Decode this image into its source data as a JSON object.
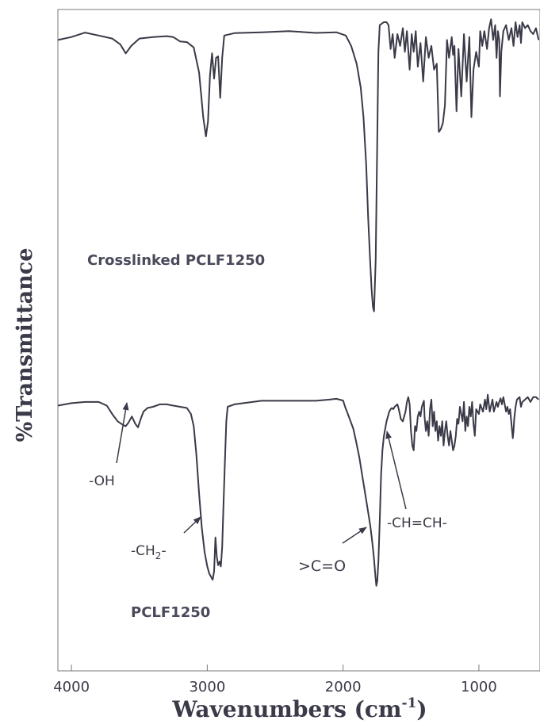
{
  "chart_data": {
    "type": "line",
    "xlabel": "Wavenumbers (cm",
    "xlabel_sup": "-1",
    "ylabel": "%Transmittance",
    "xlim": [
      4100,
      550
    ],
    "x_reversed": true,
    "x_ticks": [
      {
        "value": 4000,
        "label": "4000"
      },
      {
        "value": 3000,
        "label": "3000"
      },
      {
        "value": 2000,
        "label": "2000"
      },
      {
        "value": 1000,
        "label": "1000"
      }
    ],
    "ylim": [
      0,
      100
    ],
    "y_ticks_shown": false,
    "grid": false,
    "line_color": "#3a3a48",
    "series": [
      {
        "name": "Crosslinked PCLF1250",
        "points": [
          [
            4100,
            94.0
          ],
          [
            4000,
            95.0
          ],
          [
            3900,
            96.5
          ],
          [
            3800,
            95.5
          ],
          [
            3700,
            94.5
          ],
          [
            3640,
            92.5
          ],
          [
            3600,
            89.5
          ],
          [
            3560,
            92.0
          ],
          [
            3500,
            94.5
          ],
          [
            3400,
            95.0
          ],
          [
            3300,
            95.3
          ],
          [
            3250,
            95.0
          ],
          [
            3200,
            93.5
          ],
          [
            3150,
            93.3
          ],
          [
            3100,
            91.5
          ],
          [
            3060,
            83.0
          ],
          [
            3030,
            68.0
          ],
          [
            3010,
            61.5
          ],
          [
            2995,
            66.5
          ],
          [
            2980,
            82.0
          ],
          [
            2965,
            89.5
          ],
          [
            2950,
            81.0
          ],
          [
            2935,
            88.0
          ],
          [
            2920,
            88.5
          ],
          [
            2905,
            74.5
          ],
          [
            2890,
            88.0
          ],
          [
            2875,
            95.5
          ],
          [
            2800,
            96.3
          ],
          [
            2600,
            96.6
          ],
          [
            2400,
            97.0
          ],
          [
            2200,
            96.4
          ],
          [
            2050,
            96.6
          ],
          [
            1980,
            95.5
          ],
          [
            1940,
            92.0
          ],
          [
            1900,
            86.0
          ],
          [
            1870,
            78.0
          ],
          [
            1850,
            68.0
          ],
          [
            1830,
            52.0
          ],
          [
            1815,
            34.0
          ],
          [
            1800,
            19.0
          ],
          [
            1790,
            10.0
          ],
          [
            1780,
            4.0
          ],
          [
            1772,
            2.5
          ],
          [
            1760,
            20.0
          ],
          [
            1750,
            55.0
          ],
          [
            1740,
            90.0
          ],
          [
            1730,
            99.0
          ],
          [
            1700,
            100.0
          ],
          [
            1680,
            100.0
          ],
          [
            1665,
            99.0
          ],
          [
            1650,
            91.0
          ],
          [
            1635,
            96.0
          ],
          [
            1620,
            88.0
          ],
          [
            1600,
            96.0
          ],
          [
            1580,
            92.0
          ],
          [
            1560,
            98.0
          ],
          [
            1545,
            90.0
          ],
          [
            1530,
            97.0
          ],
          [
            1510,
            84.0
          ],
          [
            1495,
            96.0
          ],
          [
            1480,
            90.0
          ],
          [
            1465,
            97.0
          ],
          [
            1450,
            85.0
          ],
          [
            1430,
            93.0
          ],
          [
            1410,
            80.0
          ],
          [
            1390,
            95.0
          ],
          [
            1370,
            88.0
          ],
          [
            1350,
            92.0
          ],
          [
            1330,
            84.0
          ],
          [
            1310,
            86.0
          ],
          [
            1295,
            63.0
          ],
          [
            1280,
            64.0
          ],
          [
            1265,
            66.0
          ],
          [
            1250,
            72.0
          ],
          [
            1235,
            94.0
          ],
          [
            1220,
            88.0
          ],
          [
            1200,
            95.0
          ],
          [
            1190,
            89.0
          ],
          [
            1180,
            92.0
          ],
          [
            1165,
            70.0
          ],
          [
            1150,
            91.0
          ],
          [
            1130,
            75.0
          ],
          [
            1110,
            96.0
          ],
          [
            1090,
            80.0
          ],
          [
            1070,
            95.0
          ],
          [
            1055,
            68.0
          ],
          [
            1040,
            84.0
          ],
          [
            1020,
            90.0
          ],
          [
            1000,
            85.0
          ],
          [
            990,
            97.0
          ],
          [
            975,
            92.0
          ],
          [
            960,
            97.0
          ],
          [
            940,
            91.0
          ],
          [
            925,
            98.0
          ],
          [
            910,
            101.0
          ],
          [
            895,
            94.0
          ],
          [
            880,
            99.0
          ],
          [
            870,
            88.0
          ],
          [
            860,
            97.0
          ],
          [
            850,
            94.0
          ],
          [
            845,
            75.0
          ],
          [
            835,
            90.0
          ],
          [
            820,
            97.0
          ],
          [
            800,
            99.0
          ],
          [
            780,
            94.0
          ],
          [
            760,
            98.0
          ],
          [
            745,
            92.0
          ],
          [
            730,
            100.0
          ],
          [
            715,
            95.0
          ],
          [
            700,
            99.0
          ],
          [
            690,
            93.0
          ],
          [
            680,
            100.0
          ],
          [
            660,
            98.0
          ],
          [
            640,
            99.0
          ],
          [
            620,
            97.0
          ],
          [
            600,
            96.0
          ],
          [
            580,
            98.0
          ],
          [
            560,
            94.0
          ]
        ]
      },
      {
        "name": "PCLF1250",
        "points": [
          [
            4100,
            80.5
          ],
          [
            4000,
            81.5
          ],
          [
            3900,
            82.0
          ],
          [
            3800,
            82.0
          ],
          [
            3740,
            80.5
          ],
          [
            3700,
            77.0
          ],
          [
            3660,
            74.0
          ],
          [
            3620,
            72.5
          ],
          [
            3600,
            72.0
          ],
          [
            3580,
            73.5
          ],
          [
            3555,
            76.0
          ],
          [
            3530,
            73.0
          ],
          [
            3510,
            71.5
          ],
          [
            3490,
            75.0
          ],
          [
            3470,
            78.0
          ],
          [
            3440,
            79.5
          ],
          [
            3400,
            80.0
          ],
          [
            3350,
            81.0
          ],
          [
            3300,
            81.0
          ],
          [
            3250,
            80.5
          ],
          [
            3200,
            80.0
          ],
          [
            3150,
            79.5
          ],
          [
            3120,
            77.0
          ],
          [
            3100,
            72.0
          ],
          [
            3080,
            60.0
          ],
          [
            3060,
            44.0
          ],
          [
            3040,
            30.0
          ],
          [
            3020,
            20.0
          ],
          [
            3000,
            14.0
          ],
          [
            2985,
            11.0
          ],
          [
            2970,
            9.5
          ],
          [
            2960,
            8.5
          ],
          [
            2950,
            12.0
          ],
          [
            2940,
            26.0
          ],
          [
            2930,
            18.0
          ],
          [
            2920,
            14.5
          ],
          [
            2910,
            16.0
          ],
          [
            2900,
            14.0
          ],
          [
            2890,
            22.0
          ],
          [
            2880,
            40.0
          ],
          [
            2870,
            58.0
          ],
          [
            2860,
            74.0
          ],
          [
            2850,
            80.0
          ],
          [
            2800,
            81.0
          ],
          [
            2600,
            82.5
          ],
          [
            2400,
            82.5
          ],
          [
            2200,
            82.5
          ],
          [
            2100,
            83.0
          ],
          [
            2050,
            83.3
          ],
          [
            2000,
            82.6
          ],
          [
            1985,
            80.0
          ],
          [
            1965,
            77.0
          ],
          [
            1945,
            74.0
          ],
          [
            1925,
            71.0
          ],
          [
            1905,
            66.0
          ],
          [
            1880,
            59.0
          ],
          [
            1860,
            52.0
          ],
          [
            1840,
            45.0
          ],
          [
            1820,
            38.0
          ],
          [
            1800,
            31.0
          ],
          [
            1785,
            24.0
          ],
          [
            1772,
            17.0
          ],
          [
            1762,
            10.0
          ],
          [
            1755,
            6.0
          ],
          [
            1748,
            8.0
          ],
          [
            1740,
            16.0
          ],
          [
            1730,
            33.0
          ],
          [
            1720,
            52.0
          ],
          [
            1710,
            62.0
          ],
          [
            1700,
            67.5
          ],
          [
            1690,
            71.0
          ],
          [
            1680,
            74.0
          ],
          [
            1670,
            76.0
          ],
          [
            1660,
            78.0
          ],
          [
            1650,
            79.0
          ],
          [
            1640,
            79.5
          ],
          [
            1630,
            79.0
          ],
          [
            1620,
            80.0
          ],
          [
            1600,
            81.0
          ],
          [
            1590,
            79.0
          ],
          [
            1575,
            75.0
          ],
          [
            1560,
            74.0
          ],
          [
            1550,
            76.0
          ],
          [
            1540,
            78.0
          ],
          [
            1530,
            82.0
          ],
          [
            1520,
            84.0
          ],
          [
            1510,
            81.0
          ],
          [
            1500,
            70.0
          ],
          [
            1490,
            64.0
          ],
          [
            1480,
            62.0
          ],
          [
            1470,
            72.0
          ],
          [
            1460,
            70.0
          ],
          [
            1450,
            76.0
          ],
          [
            1440,
            78.0
          ],
          [
            1430,
            76.0
          ],
          [
            1420,
            80.0
          ],
          [
            1405,
            82.5
          ],
          [
            1400,
            76.0
          ],
          [
            1390,
            70.0
          ],
          [
            1380,
            74.0
          ],
          [
            1370,
            68.0
          ],
          [
            1360,
            79.0
          ],
          [
            1350,
            83.0
          ],
          [
            1340,
            72.0
          ],
          [
            1330,
            78.0
          ],
          [
            1320,
            70.0
          ],
          [
            1310,
            74.0
          ],
          [
            1300,
            66.0
          ],
          [
            1290,
            72.0
          ],
          [
            1280,
            68.0
          ],
          [
            1270,
            74.0
          ],
          [
            1260,
            64.0
          ],
          [
            1250,
            70.0
          ],
          [
            1240,
            74.0
          ],
          [
            1230,
            68.0
          ],
          [
            1220,
            64.0
          ],
          [
            1210,
            70.0
          ],
          [
            1200,
            66.0
          ],
          [
            1190,
            62.0
          ],
          [
            1180,
            64.0
          ],
          [
            1170,
            68.0
          ],
          [
            1160,
            75.0
          ],
          [
            1150,
            73.0
          ],
          [
            1140,
            80.0
          ],
          [
            1120,
            74.0
          ],
          [
            1110,
            82.0
          ],
          [
            1100,
            70.0
          ],
          [
            1090,
            76.0
          ],
          [
            1080,
            72.0
          ],
          [
            1070,
            80.0
          ],
          [
            1060,
            76.0
          ],
          [
            1050,
            82.0
          ],
          [
            1040,
            73.0
          ],
          [
            1030,
            68.0
          ],
          [
            1020,
            79.0
          ],
          [
            1000,
            77.0
          ],
          [
            990,
            81.0
          ],
          [
            970,
            78.0
          ],
          [
            955,
            83.0
          ],
          [
            945,
            79.0
          ],
          [
            935,
            85.0
          ],
          [
            920,
            78.0
          ],
          [
            900,
            83.0
          ],
          [
            890,
            78.0
          ],
          [
            880,
            80.0
          ],
          [
            870,
            82.0
          ],
          [
            860,
            80.0
          ],
          [
            850,
            82.0
          ],
          [
            840,
            83.5
          ],
          [
            830,
            81.0
          ],
          [
            820,
            84.0
          ],
          [
            810,
            81.0
          ],
          [
            800,
            78.0
          ],
          [
            790,
            80.0
          ],
          [
            780,
            77.0
          ],
          [
            770,
            79.0
          ],
          [
            760,
            73.0
          ],
          [
            750,
            67.0
          ],
          [
            745,
            70.0
          ],
          [
            740,
            75.0
          ],
          [
            730,
            80.0
          ],
          [
            720,
            83.0
          ],
          [
            700,
            84.0
          ],
          [
            690,
            80.0
          ],
          [
            680,
            82.0
          ],
          [
            660,
            83.0
          ],
          [
            640,
            84.0
          ],
          [
            620,
            82.0
          ],
          [
            600,
            84.0
          ],
          [
            580,
            84.0
          ],
          [
            560,
            83.0
          ]
        ]
      }
    ],
    "annotations": {
      "crosslinked_label": "Crosslinked PCLF1250",
      "pclf_label": "PCLF1250",
      "oh": "-OH",
      "ch2_prefix": "-CH",
      "ch2_sub": "2",
      "ch2_suffix": "-",
      "co": ">C=O",
      "chch": "-CH=CH-"
    }
  }
}
